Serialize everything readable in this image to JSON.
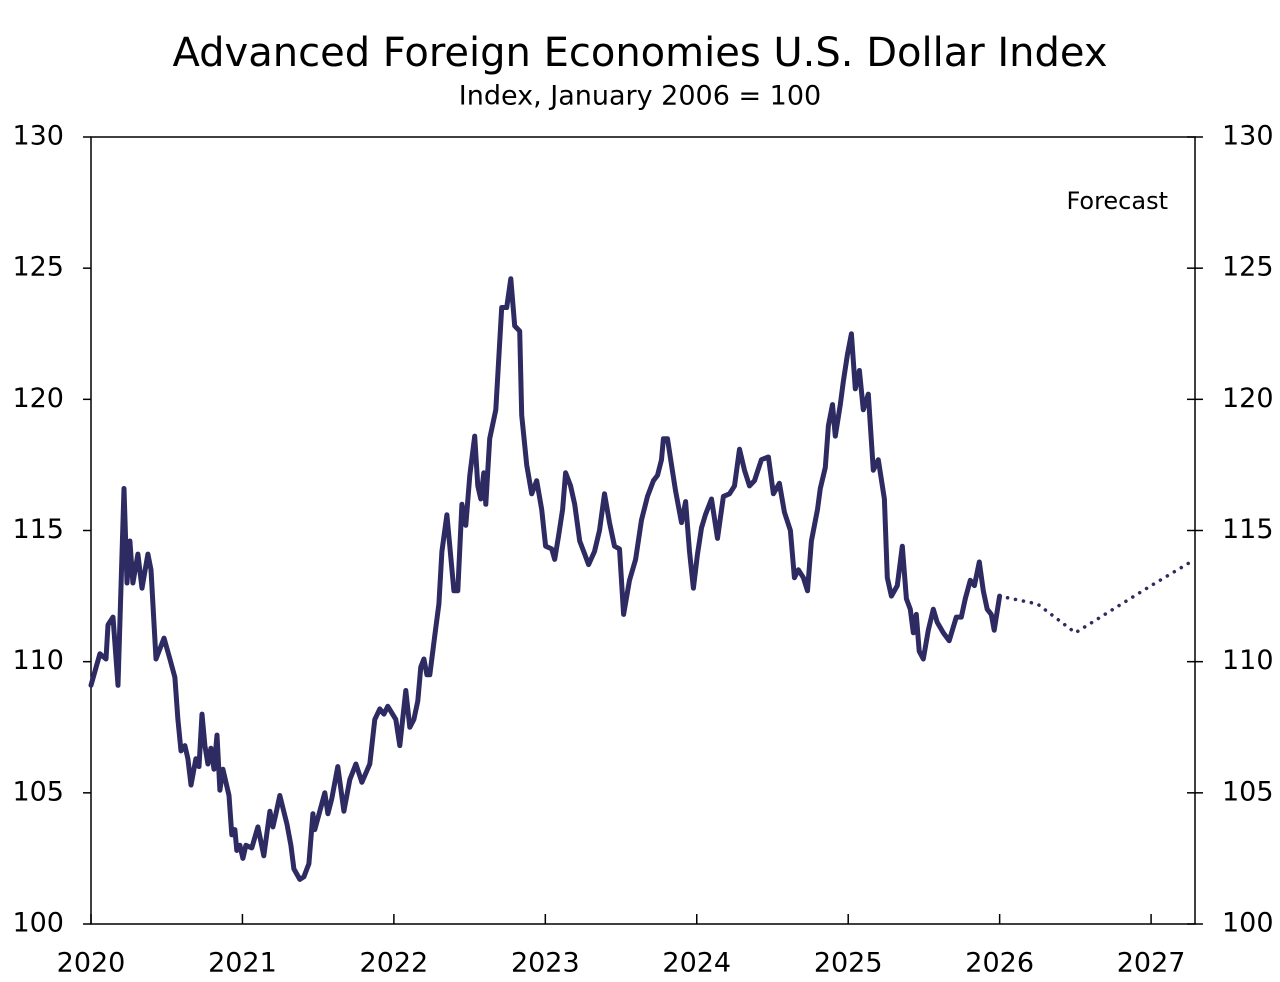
{
  "chart_data": {
    "type": "line",
    "title": "Advanced Foreign Economies U.S. Dollar Index",
    "subtitle": "Index, January 2006 = 100",
    "annotation": "Forecast",
    "xlim": [
      2020,
      2027.29
    ],
    "xticks": [
      2020,
      2021,
      2022,
      2023,
      2024,
      2025,
      2026,
      2027
    ],
    "ylim": [
      100,
      130
    ],
    "yticks": [
      100,
      105,
      110,
      115,
      120,
      125,
      130
    ],
    "y2lim": [
      100,
      130
    ],
    "y2ticks": [
      100,
      105,
      110,
      115,
      120,
      125,
      130
    ],
    "series": [
      {
        "color": "#2e2a62",
        "style": "solid",
        "x": [
          2020.0,
          2020.059,
          2020.099,
          2020.112,
          2020.145,
          2020.178,
          2020.218,
          2020.238,
          2020.257,
          2020.277,
          2020.31,
          2020.337,
          2020.376,
          2020.396,
          2020.429,
          2020.482,
          2020.521,
          2020.554,
          2020.574,
          2020.594,
          2020.62,
          2020.64,
          2020.66,
          2020.693,
          2020.713,
          2020.733,
          2020.752,
          2020.772,
          2020.792,
          2020.812,
          2020.832,
          2020.851,
          2020.871,
          2020.911,
          2020.93,
          2020.95,
          2020.963,
          2020.983,
          2021.003,
          2021.023,
          2021.062,
          2021.102,
          2021.141,
          2021.181,
          2021.201,
          2021.221,
          2021.247,
          2021.294,
          2021.32,
          2021.34,
          2021.379,
          2021.406,
          2021.439,
          2021.465,
          2021.478,
          2021.511,
          2021.544,
          2021.564,
          2021.591,
          2021.63,
          2021.67,
          2021.709,
          2021.749,
          2021.789,
          2021.841,
          2021.874,
          2021.907,
          2021.934,
          2021.96,
          2022.013,
          2022.039,
          2022.079,
          2022.105,
          2022.132,
          2022.158,
          2022.178,
          2022.198,
          2022.218,
          2022.237,
          2022.27,
          2022.297,
          2022.317,
          2022.35,
          2022.396,
          2022.422,
          2022.449,
          2022.475,
          2022.501,
          2022.534,
          2022.554,
          2022.574,
          2022.594,
          2022.607,
          2022.633,
          2022.673,
          2022.712,
          2022.745,
          2022.772,
          2022.798,
          2022.831,
          2022.844,
          2022.877,
          2022.91,
          2022.943,
          2022.976,
          2023.002,
          2023.042,
          2023.062,
          2023.088,
          2023.114,
          2023.134,
          2023.167,
          2023.194,
          2023.227,
          2023.26,
          2023.286,
          2023.325,
          2023.358,
          2023.391,
          2023.424,
          2023.457,
          2023.49,
          2023.517,
          2023.556,
          2023.596,
          2023.635,
          2023.675,
          2023.714,
          2023.741,
          2023.767,
          2023.78,
          2023.807,
          2023.833,
          2023.86,
          2023.899,
          2023.926,
          2023.952,
          2023.978,
          2024.005,
          2024.031,
          2024.057,
          2024.097,
          2024.137,
          2024.176,
          2024.216,
          2024.249,
          2024.282,
          2024.315,
          2024.348,
          2024.381,
          2024.427,
          2024.473,
          2024.506,
          2024.546,
          2024.579,
          2024.618,
          2024.645,
          2024.671,
          2024.704,
          2024.731,
          2024.757,
          2024.797,
          2024.816,
          2024.849,
          2024.869,
          2024.896,
          2024.915,
          2024.948,
          2024.968,
          2024.995,
          2025.021,
          2025.047,
          2025.074,
          2025.1,
          2025.133,
          2025.166,
          2025.199,
          2025.239,
          2025.258,
          2025.285,
          2025.324,
          2025.357,
          2025.384,
          2025.41,
          2025.43,
          2025.45,
          2025.469,
          2025.496,
          2025.529,
          2025.562,
          2025.588,
          2025.628,
          2025.667,
          2025.714,
          2025.747,
          2025.773,
          2025.806,
          2025.833,
          2025.866,
          2025.892,
          2025.918,
          2025.945,
          2025.964,
          2026.0
        ],
        "values": [
          109.1,
          110.3,
          110.1,
          111.4,
          111.7,
          109.1,
          116.6,
          113.0,
          114.6,
          113.0,
          114.1,
          112.8,
          114.1,
          113.5,
          110.1,
          110.9,
          110.1,
          109.4,
          107.8,
          106.6,
          106.8,
          106.3,
          105.3,
          106.3,
          106.0,
          108.0,
          106.8,
          106.1,
          106.7,
          105.9,
          107.2,
          105.1,
          105.9,
          104.9,
          103.4,
          103.6,
          102.8,
          103.0,
          102.5,
          103.0,
          102.9,
          103.7,
          102.6,
          104.3,
          103.7,
          104.2,
          104.9,
          103.8,
          103.0,
          102.1,
          101.7,
          101.8,
          102.3,
          104.2,
          103.6,
          104.3,
          105.0,
          104.2,
          104.8,
          106.0,
          104.3,
          105.5,
          106.1,
          105.4,
          106.1,
          107.8,
          108.2,
          108.0,
          108.3,
          107.8,
          106.8,
          108.9,
          107.5,
          107.8,
          108.5,
          109.8,
          110.1,
          109.5,
          109.5,
          111.0,
          112.2,
          114.2,
          115.6,
          112.7,
          112.7,
          116.0,
          115.2,
          117.1,
          118.6,
          116.7,
          116.2,
          117.2,
          116.0,
          118.5,
          119.6,
          123.5,
          123.5,
          124.6,
          122.8,
          122.6,
          119.4,
          117.5,
          116.4,
          116.9,
          115.8,
          114.4,
          114.3,
          113.9,
          114.8,
          115.8,
          117.2,
          116.7,
          116.0,
          114.6,
          114.1,
          113.7,
          114.2,
          115.0,
          116.4,
          115.3,
          114.4,
          114.3,
          111.8,
          113.1,
          113.9,
          115.4,
          116.3,
          116.9,
          117.1,
          117.7,
          118.5,
          118.5,
          117.5,
          116.5,
          115.3,
          116.1,
          114.2,
          112.8,
          114.1,
          115.1,
          115.6,
          116.2,
          114.7,
          116.3,
          116.4,
          116.7,
          118.1,
          117.3,
          116.7,
          116.9,
          117.7,
          117.8,
          116.4,
          116.8,
          115.7,
          115.0,
          113.2,
          113.5,
          113.2,
          112.7,
          114.6,
          115.8,
          116.6,
          117.4,
          119.0,
          119.8,
          118.6,
          119.8,
          120.7,
          121.7,
          122.5,
          120.4,
          121.1,
          119.6,
          120.2,
          117.3,
          117.7,
          116.2,
          113.2,
          112.5,
          112.9,
          114.4,
          112.4,
          112.0,
          111.1,
          111.8,
          110.4,
          110.1,
          111.2,
          112.0,
          111.5,
          111.1,
          110.8,
          111.7,
          111.7,
          112.4,
          113.1,
          112.9,
          113.8,
          112.7,
          112.0,
          111.8,
          111.2,
          112.5
        ]
      },
      {
        "color": "#2e2a62",
        "style": "dotted",
        "x": [
          2026.0,
          2026.25,
          2026.5,
          2026.75,
          2027.0,
          2027.29
        ],
        "values": [
          112.5,
          112.2,
          111.1,
          112.0,
          112.9,
          113.9
        ]
      }
    ]
  }
}
